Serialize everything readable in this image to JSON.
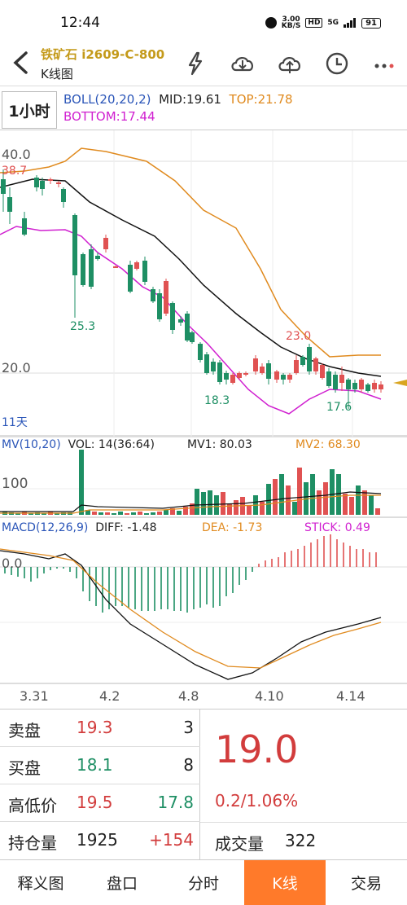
{
  "status": {
    "time": "12:44",
    "speed": "3.00",
    "speed_unit": "KB/S",
    "hd": "HD",
    "net": "5G",
    "battery": "91"
  },
  "header": {
    "title": "铁矿石 i2609-C-800",
    "subtitle": "K线图"
  },
  "indicator": {
    "period": "1小时",
    "boll_name": "BOLL(20,20,2)",
    "mid": "MID:19.61",
    "top": "TOP:21.78",
    "bottom": "BOTTOM:17.44"
  },
  "main_chart": {
    "y_top_label": "40.0",
    "y_mid_label": "20.0",
    "hi_label": "38.7",
    "low_label1": "25.3",
    "low_label2": "18.3",
    "peak_label": "23.0",
    "low_label3": "17.6",
    "days_label": "11天"
  },
  "vol_panel": {
    "name": "MV(10,20)",
    "vol": "VOL: 14(36:64)",
    "mv1": "MV1: 80.03",
    "mv2": "MV2: 68.30",
    "y_label": "100"
  },
  "macd_panel": {
    "name": "MACD(12,26,9)",
    "diff": "DIFF: -1.48",
    "dea": "DEA: -1.73",
    "stick": "STICK: 0.49",
    "zero_label": "0.0"
  },
  "x_axis": [
    "3.31",
    "4.2",
    "4.8",
    "4.10",
    "4.14"
  ],
  "quote": {
    "sell_label": "卖盘",
    "sell_price": "19.3",
    "sell_qty": "3",
    "buy_label": "买盘",
    "buy_price": "18.1",
    "buy_qty": "8",
    "hl_label": "高低价",
    "high": "19.5",
    "low": "17.8",
    "oi_label": "持仓量",
    "oi": "1925",
    "oi_change": "+154",
    "price": "19.0",
    "change": "0.2/1.06%",
    "vol_label": "成交量",
    "vol": "322"
  },
  "tabs": [
    "释义图",
    "盘口",
    "分时",
    "K线",
    "交易"
  ],
  "colors": {
    "up": "#e05252",
    "down": "#1e8f64",
    "accent": "#ff7a2a",
    "boll_top": "#e08a1e",
    "boll_bottom": "#d020d0",
    "title": "#c49a1a"
  }
}
